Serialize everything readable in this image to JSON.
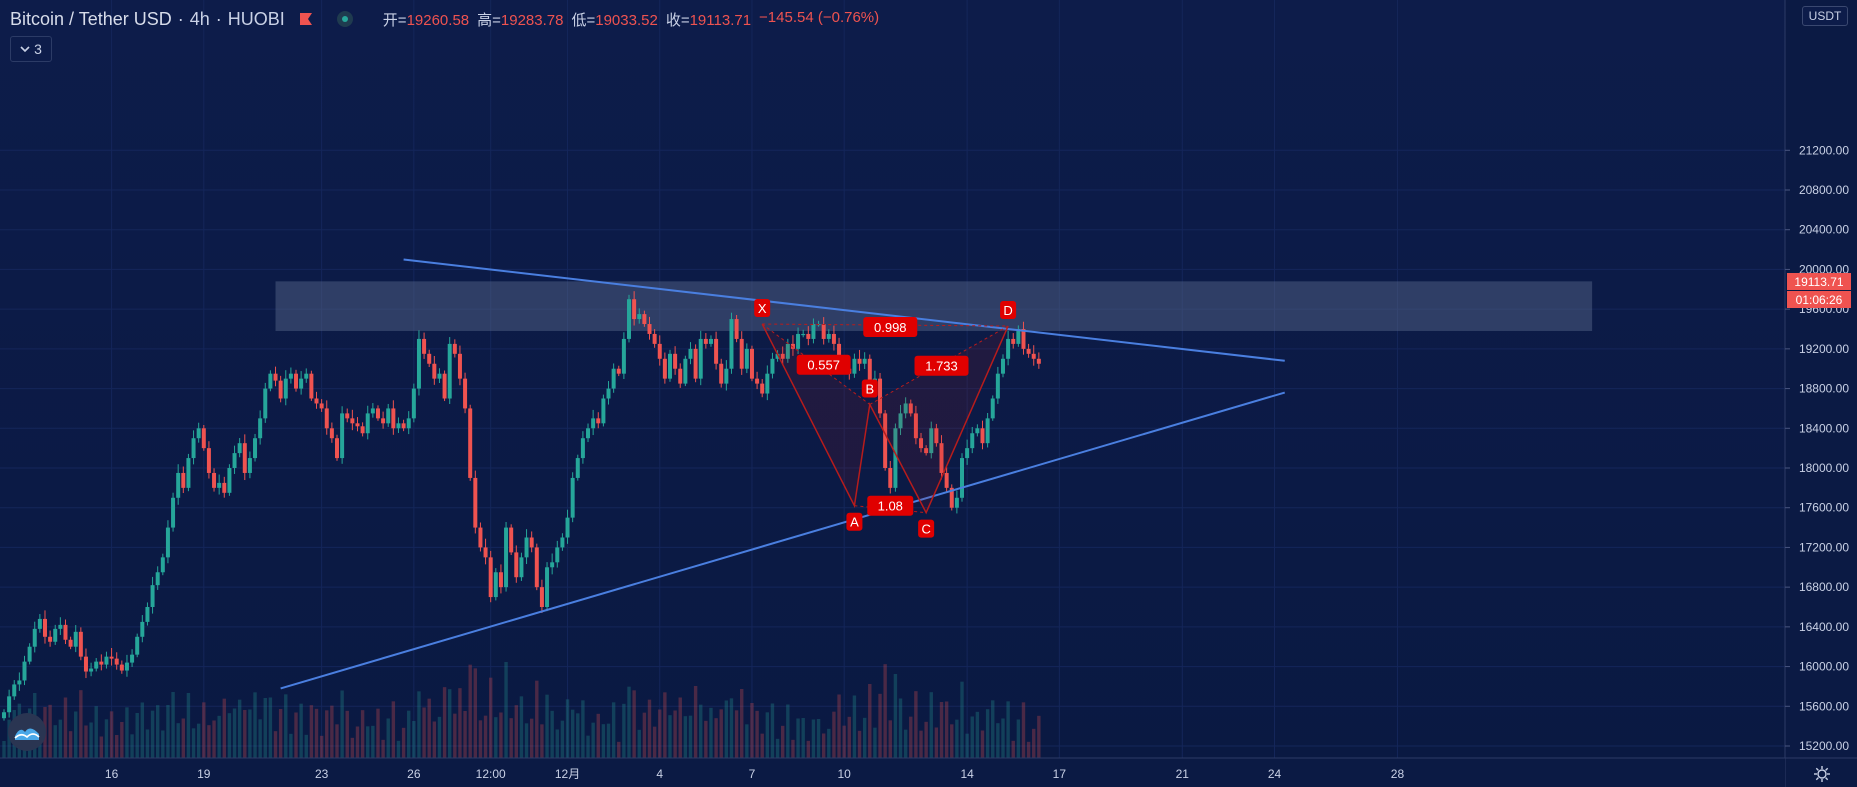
{
  "header": {
    "symbol": "Bitcoin / Tether USD",
    "interval": "4h",
    "exchange": "HUOBI",
    "open_label": "开=",
    "open": "19260.58",
    "high_label": "高=",
    "high": "19283.78",
    "low_label": "低=",
    "low": "19033.52",
    "close_label": "收=",
    "close": "19113.71",
    "change": "−145.54 (−0.76%)"
  },
  "indicator_toggle": {
    "count": "3"
  },
  "price_scale": {
    "unit": "USDT",
    "current_price": "19113.71",
    "countdown": "01:06:26"
  },
  "colors": {
    "background": "#0b1a44",
    "up": "#26a69a",
    "down": "#ef5350",
    "trendline": "#4a7fe0",
    "pattern": "#b71c1c",
    "label_bg": "#e00000",
    "zone": "#5a6a8c"
  },
  "chart_data": {
    "type": "candlestick",
    "symbol": "Bitcoin / Tether USD",
    "interval": "4h",
    "y_ticks": [
      "15200.00",
      "15600.00",
      "16000.00",
      "16400.00",
      "16800.00",
      "17200.00",
      "17600.00",
      "18000.00",
      "18400.00",
      "18800.00",
      "19200.00",
      "19600.00",
      "20000.00",
      "20400.00",
      "20800.00",
      "21200.00"
    ],
    "ylim": [
      15200,
      21440
    ],
    "x_ticks": [
      {
        "label": "16",
        "index": 21
      },
      {
        "label": "19",
        "index": 39
      },
      {
        "label": "23",
        "index": 62
      },
      {
        "label": "26",
        "index": 80
      },
      {
        "label": "12:00",
        "index": 95
      },
      {
        "label": "12月",
        "index": 110
      },
      {
        "label": "4",
        "index": 128
      },
      {
        "label": "7",
        "index": 146
      },
      {
        "label": "10",
        "index": 164
      },
      {
        "label": "14",
        "index": 188
      },
      {
        "label": "17",
        "index": 206
      },
      {
        "label": "21",
        "index": 230
      },
      {
        "label": "24",
        "index": 248
      },
      {
        "label": "28",
        "index": 272
      }
    ],
    "candle_closes": [
      15540,
      15700,
      15820,
      15860,
      16050,
      16200,
      16380,
      16480,
      16300,
      16250,
      16380,
      16420,
      16270,
      16200,
      16350,
      16100,
      15950,
      15980,
      16050,
      16020,
      16100,
      16080,
      16020,
      15960,
      16040,
      16120,
      16300,
      16450,
      16600,
      16820,
      16950,
      17100,
      17400,
      17700,
      17950,
      17800,
      18100,
      18300,
      18400,
      18200,
      17950,
      17800,
      17850,
      17750,
      18000,
      18150,
      18250,
      17950,
      18100,
      18300,
      18500,
      18800,
      18950,
      18880,
      18700,
      18900,
      18950,
      18800,
      18900,
      18950,
      18700,
      18650,
      18600,
      18400,
      18300,
      18100,
      18550,
      18500,
      18450,
      18420,
      18350,
      18550,
      18600,
      18500,
      18450,
      18600,
      18400,
      18450,
      18400,
      18500,
      18800,
      19300,
      19150,
      19050,
      18900,
      18950,
      18700,
      19250,
      19150,
      18900,
      18600,
      17900,
      17400,
      17200,
      17100,
      16700,
      16950,
      16800,
      17400,
      17150,
      16900,
      17100,
      17300,
      17200,
      16800,
      16600,
      17000,
      17050,
      17200,
      17300,
      17500,
      17900,
      18100,
      18300,
      18400,
      18500,
      18450,
      18700,
      18800,
      19000,
      18950,
      19300,
      19700,
      19500,
      19550,
      19450,
      19350,
      19250,
      19100,
      18900,
      19150,
      19000,
      18850,
      19100,
      19200,
      18900,
      19300,
      19250,
      19300,
      19050,
      18850,
      19000,
      19500,
      19300,
      19000,
      19200,
      18900,
      18850,
      18750,
      18950,
      19100,
      19150,
      19100,
      19250,
      19200,
      19350,
      19350,
      19300,
      19450,
      19450,
      19300,
      19350,
      19250,
      19100,
      19000,
      18950,
      19100,
      19050,
      19100,
      18800,
      18900,
      18550,
      18000,
      17800,
      18400,
      18550,
      18650,
      18550,
      18300,
      18200,
      18150,
      18400,
      18250,
      17950,
      17800,
      17600,
      17700,
      18100,
      18200,
      18350,
      18400,
      18250,
      18500,
      18700,
      18950,
      19100,
      19300,
      19250,
      19400,
      19200,
      19150,
      19100,
      19050
    ],
    "trendlines": [
      {
        "from": {
          "index": 78,
          "value": 20100
        },
        "to": {
          "index": 250,
          "value": 19080
        }
      },
      {
        "from": {
          "index": 54,
          "value": 15780
        },
        "to": {
          "index": 250,
          "value": 18760
        }
      }
    ],
    "resistance_zone": {
      "from_index": 53,
      "to_index": 310,
      "low": 19380,
      "high": 19880
    },
    "pattern": {
      "points": [
        {
          "label": "X",
          "index": 148,
          "value": 19450
        },
        {
          "label": "A",
          "index": 166,
          "value": 17620
        },
        {
          "label": "B",
          "index": 169,
          "value": 18640
        },
        {
          "label": "C",
          "index": 180,
          "value": 17550
        },
        {
          "label": "D",
          "index": 196,
          "value": 19430
        }
      ],
      "ratios": [
        {
          "label": "0.557",
          "index": 160,
          "value": 19040
        },
        {
          "label": "0.998",
          "index": 173,
          "value": 19420
        },
        {
          "label": "1.733",
          "index": 183,
          "value": 19030
        },
        {
          "label": "1.08",
          "index": 173,
          "value": 17620
        }
      ]
    }
  }
}
